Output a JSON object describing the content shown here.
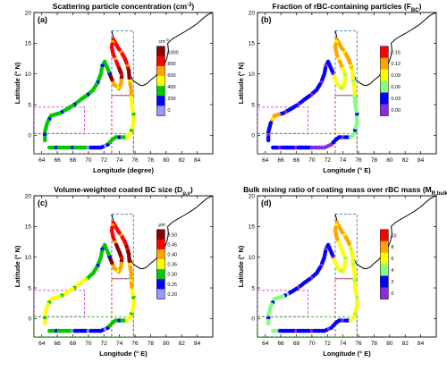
{
  "chart_data": [
    {
      "type": "scatter",
      "panel_label": "(a)",
      "title_parts": [
        {
          "t": "Scattering particle concentration (cm",
          "s": "n"
        },
        {
          "t": "-3",
          "s": "sup"
        },
        {
          "t": ")",
          "s": "n"
        }
      ],
      "xlabel": "Longitude (degree)",
      "ylabel": "Latitude (° N)",
      "xlim": [
        63,
        86
      ],
      "ylim": [
        -3,
        20
      ],
      "xticks": [
        "64",
        "66",
        "68",
        "70",
        "72",
        "74",
        "76",
        "78",
        "80",
        "82",
        "84"
      ],
      "yticks": [
        "0",
        "5",
        "10",
        "15",
        "20"
      ],
      "colorbar": {
        "label_parts": [
          {
            "t": "cm",
            "s": "n"
          },
          {
            "t": "-3",
            "s": "sup"
          }
        ],
        "ticks": [
          "1000",
          "800",
          "600",
          "400",
          "200",
          "0"
        ],
        "colors": [
          "#8b0000",
          "#ff0000",
          "#ffa500",
          "#ffff00",
          "#00c800",
          "#0000ff",
          "#9999ff"
        ]
      },
      "pattern": "A"
    },
    {
      "type": "scatter",
      "panel_label": "(b)",
      "title_parts": [
        {
          "t": "Fraction of rBC-containing particles (F",
          "s": "n"
        },
        {
          "t": "BC",
          "s": "sub"
        },
        {
          "t": ")",
          "s": "n"
        }
      ],
      "xlabel": "Longitude (° E)",
      "ylabel": "Latitude (° N)",
      "xlim": [
        63,
        86
      ],
      "ylim": [
        -3,
        20
      ],
      "xticks": [
        "64",
        "66",
        "68",
        "70",
        "72",
        "74",
        "76",
        "78",
        "80",
        "82",
        "84"
      ],
      "yticks": [
        "0",
        "5",
        "10",
        "15",
        "20"
      ],
      "colorbar": {
        "label_parts": [],
        "ticks": [
          "0.15",
          "0.12",
          "0.09",
          "0.06",
          "0.03",
          "0.00"
        ],
        "colors": [
          "#ff0000",
          "#ffa500",
          "#ffff00",
          "#80ff80",
          "#0000ff",
          "#8a2be2"
        ]
      },
      "pattern": "B"
    },
    {
      "type": "scatter",
      "panel_label": "(c)",
      "title_parts": [
        {
          "t": "Volume-weighted coated BC size (D",
          "s": "n"
        },
        {
          "t": "p,v",
          "s": "sub"
        },
        {
          "t": ")",
          "s": "n"
        }
      ],
      "xlabel": "Longitude (° E)",
      "ylabel": "Latitude (° N)",
      "xlim": [
        63,
        86
      ],
      "ylim": [
        -3,
        20
      ],
      "xticks": [
        "64",
        "66",
        "68",
        "70",
        "72",
        "74",
        "76",
        "78",
        "80",
        "82",
        "84"
      ],
      "yticks": [
        "0",
        "5",
        "10",
        "15",
        "20"
      ],
      "colorbar": {
        "label_parts": [
          {
            "t": "μm",
            "s": "n"
          }
        ],
        "ticks": [
          "0.50",
          "0.45",
          "0.40",
          "0.35",
          "0.30",
          "0.25",
          "0.20"
        ],
        "colors": [
          "#8b0000",
          "#ff0000",
          "#ffa500",
          "#ffff00",
          "#00c800",
          "#0000ff",
          "#9999ff"
        ]
      },
      "pattern": "C"
    },
    {
      "type": "scatter",
      "panel_label": "(d)",
      "title_parts": [
        {
          "t": "Bulk mixing ratio of coating mass over rBC mass (M",
          "s": "n"
        },
        {
          "t": "R,bulk",
          "s": "sub"
        },
        {
          "t": ")",
          "s": "n"
        }
      ],
      "xlabel": "Longitude (° E)",
      "ylabel": "Latitude (° N)",
      "xlim": [
        63,
        86
      ],
      "ylim": [
        -3,
        20
      ],
      "xticks": [
        "64",
        "66",
        "68",
        "70",
        "72",
        "74",
        "76",
        "78",
        "80",
        "82",
        "84"
      ],
      "yticks": [
        "0",
        "5",
        "10",
        "15",
        "20"
      ],
      "colorbar": {
        "label_parts": [],
        "ticks": [
          "10",
          "8",
          "6",
          "4",
          "2",
          "0"
        ],
        "colors": [
          "#ff0000",
          "#ffa500",
          "#ffff00",
          "#80ff80",
          "#0000ff",
          "#8a2be2"
        ]
      },
      "pattern": "D"
    }
  ],
  "track": [
    [
      65.0,
      -2.0
    ],
    [
      66.5,
      -2.0
    ],
    [
      68.0,
      -2.0
    ],
    [
      70.0,
      -2.0
    ],
    [
      71.6,
      -2.0
    ],
    [
      72.5,
      -1.5
    ],
    [
      73.0,
      -0.8
    ],
    [
      73.5,
      -0.3
    ],
    [
      74.0,
      -0.3
    ],
    [
      75.0,
      -0.3
    ],
    [
      75.5,
      0.5
    ],
    [
      75.8,
      2.0
    ],
    [
      75.8,
      3.5
    ],
    [
      75.6,
      4.8
    ],
    [
      75.5,
      6.3
    ],
    [
      75.5,
      7.5
    ],
    [
      75.3,
      9.0
    ],
    [
      75.2,
      10.5
    ],
    [
      75.0,
      11.5
    ],
    [
      74.7,
      12.5
    ],
    [
      74.3,
      13.4
    ],
    [
      73.8,
      14.3
    ],
    [
      73.5,
      15.0
    ],
    [
      73.2,
      15.6
    ],
    [
      73.0,
      14.4
    ],
    [
      73.2,
      13.2
    ],
    [
      73.6,
      12.0
    ],
    [
      74.0,
      10.8
    ],
    [
      74.3,
      9.8
    ],
    [
      74.2,
      8.5
    ],
    [
      73.9,
      7.6
    ],
    [
      73.3,
      8.3
    ],
    [
      72.9,
      9.5
    ],
    [
      72.5,
      10.8
    ],
    [
      72.1,
      12.0
    ],
    [
      71.8,
      11.3
    ],
    [
      71.6,
      10.0
    ],
    [
      71.2,
      8.6
    ],
    [
      70.6,
      7.4
    ],
    [
      69.9,
      6.6
    ],
    [
      69.0,
      5.8
    ],
    [
      68.2,
      5.0
    ],
    [
      67.3,
      4.3
    ],
    [
      66.3,
      3.6
    ],
    [
      65.2,
      3.2
    ],
    [
      64.7,
      2.0
    ],
    [
      64.4,
      0.5
    ],
    [
      64.4,
      -0.8
    ]
  ],
  "coast": [
    [
      73.0,
      17.0
    ],
    [
      73.3,
      15.6
    ],
    [
      73.8,
      14.3
    ],
    [
      74.2,
      13.4
    ],
    [
      74.5,
      12.5
    ],
    [
      74.9,
      11.3
    ],
    [
      75.3,
      10.0
    ],
    [
      75.7,
      9.0
    ],
    [
      76.1,
      8.6
    ],
    [
      76.6,
      8.2
    ],
    [
      77.0,
      8.1
    ],
    [
      77.5,
      8.4
    ],
    [
      78.0,
      9.0
    ],
    [
      78.6,
      9.6
    ],
    [
      79.0,
      10.3
    ],
    [
      79.4,
      10.8
    ],
    [
      79.8,
      11.6
    ],
    [
      80.1,
      12.6
    ],
    [
      80.3,
      13.8
    ],
    [
      80.2,
      15.0
    ],
    [
      80.8,
      15.7
    ],
    [
      81.6,
      16.3
    ],
    [
      82.3,
      16.8
    ],
    [
      83.2,
      17.5
    ],
    [
      84.0,
      18.2
    ],
    [
      84.7,
      19.0
    ],
    [
      85.3,
      19.6
    ],
    [
      86.0,
      20.0
    ]
  ],
  "boxes": [
    {
      "x": [
        73.0,
        75.8
      ],
      "y": [
        6.5,
        17.0
      ],
      "color": "#3a70c8"
    },
    {
      "x": [
        73.0,
        75.8
      ],
      "y": [
        -3.0,
        6.5
      ],
      "color": "#e03030"
    },
    {
      "x": [
        63.0,
        69.5
      ],
      "y": [
        0.3,
        4.6
      ],
      "color": "#d040d0"
    },
    {
      "x": [
        63.0,
        75.8
      ],
      "y": [
        -3.0,
        0.3
      ],
      "color": "#30a030"
    }
  ]
}
